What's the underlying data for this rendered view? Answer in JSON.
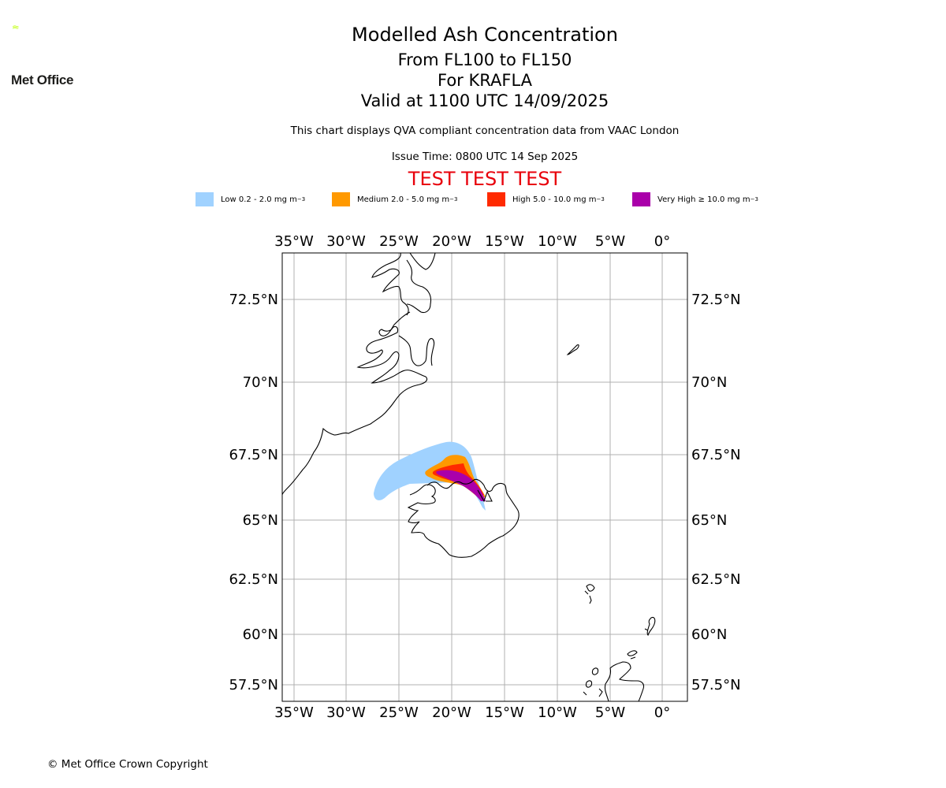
{
  "logo": {
    "text": "Met Office",
    "color": "#c8ff2e"
  },
  "titles": {
    "main": "Modelled Ash Concentration",
    "levels": "From FL100 to FL150",
    "volcano": "For KRAFLA",
    "valid": "Valid at 1100 UTC 14/09/2025"
  },
  "subtitle": "This chart displays QVA compliant concentration data from VAAC London",
  "issue_time": "Issue Time: 0800 UTC 14 Sep 2025",
  "test_banner": "TEST TEST TEST",
  "legend": [
    {
      "label": "Low 0.2 - 2.0 mg m",
      "unit_sup": "−3",
      "color": "#a0d2ff"
    },
    {
      "label": "Medium 2.0 - 5.0 mg m",
      "unit_sup": "−3",
      "color": "#ff9900"
    },
    {
      "label": "High 5.0 - 10.0 mg m",
      "unit_sup": "−3",
      "color": "#ff2a00"
    },
    {
      "label": "Very High  ≥  10.0 mg m",
      "unit_sup": "−3",
      "color": "#aa00aa"
    }
  ],
  "map": {
    "lon_labels": [
      "35°W",
      "30°W",
      "25°W",
      "20°W",
      "15°W",
      "10°W",
      "5°W",
      "0°"
    ],
    "lat_labels": [
      "72.5°N",
      "70°N",
      "67.5°N",
      "65°N",
      "62.5°N",
      "60°N",
      "57.5°N"
    ]
  },
  "copyright": "© Met Office Crown Copyright"
}
